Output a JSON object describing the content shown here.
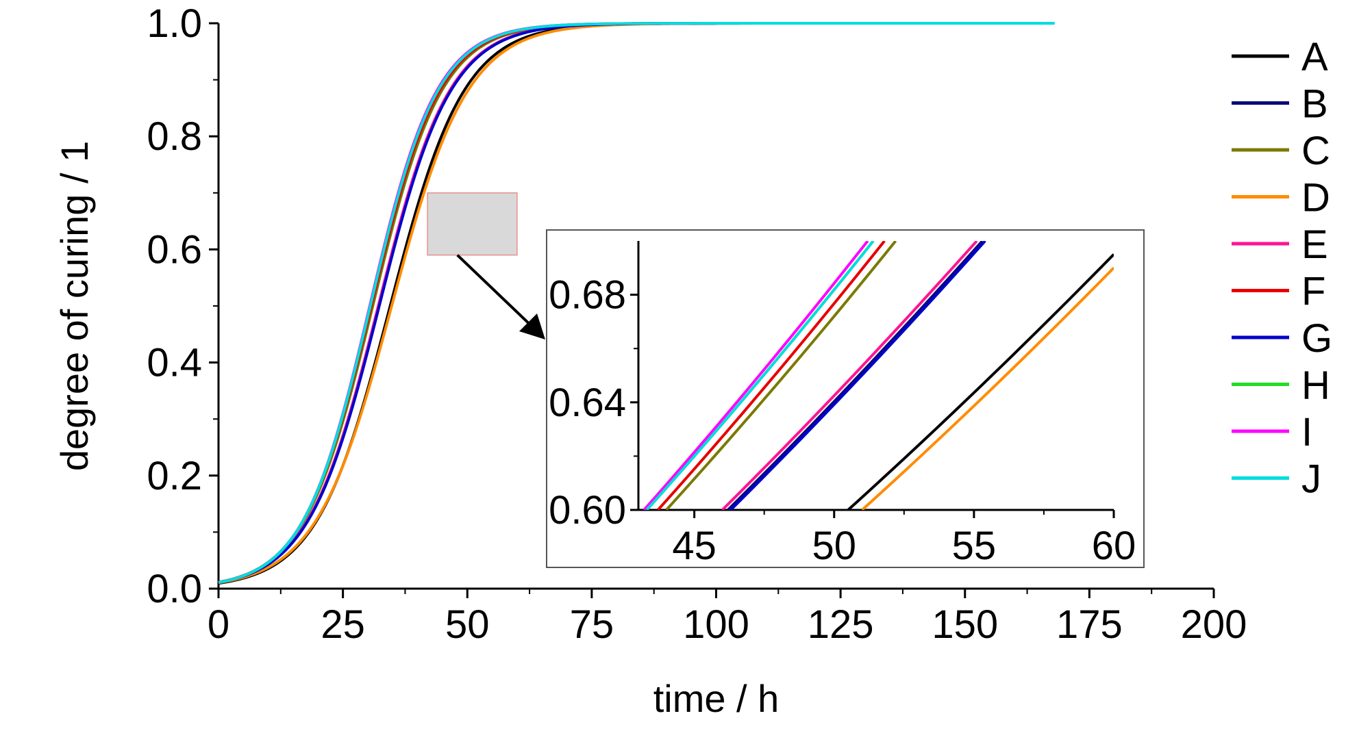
{
  "chart_data": [
    {
      "type": "line",
      "xlabel": "time / h",
      "ylabel": "degree of curing / 1",
      "xlim": [
        0,
        200
      ],
      "ylim": [
        0,
        1.0
      ],
      "x_ticks": [
        "0",
        "25",
        "50",
        "75",
        "100",
        "125",
        "150",
        "175",
        "200"
      ],
      "y_ticks": [
        "0.0",
        "0.2",
        "0.4",
        "0.6",
        "0.8",
        "1.0"
      ],
      "grid": false,
      "legend_position": "right",
      "series": [
        {
          "name": "A",
          "color": "#000000",
          "t_half": 34.5,
          "k": 0.0306,
          "x_end": 168
        },
        {
          "name": "B",
          "color": "#0a0a78",
          "t_half": 32.2,
          "k": 0.0317,
          "x_end": 168
        },
        {
          "name": "C",
          "color": "#7a7a00",
          "t_half": 31.0,
          "k": 0.0328,
          "x_end": 168
        },
        {
          "name": "D",
          "color": "#ff8c00",
          "t_half": 34.8,
          "k": 0.0297,
          "x_end": 168
        },
        {
          "name": "E",
          "color": "#ff1493",
          "t_half": 32.1,
          "k": 0.0317,
          "x_end": 168
        },
        {
          "name": "F",
          "color": "#e60000",
          "t_half": 30.7,
          "k": 0.0331,
          "x_end": 168
        },
        {
          "name": "G",
          "color": "#0000cc",
          "t_half": 32.3,
          "k": 0.0316,
          "x_end": 168
        },
        {
          "name": "H",
          "color": "#22dd22",
          "t_half": 30.5,
          "k": 0.0336,
          "x_end": 168
        },
        {
          "name": "I",
          "color": "#ff00ff",
          "t_half": 30.4,
          "k": 0.0337,
          "x_end": 168
        },
        {
          "name": "J",
          "color": "#00dddd",
          "t_half": 30.5,
          "k": 0.0335,
          "x_end": 168
        }
      ],
      "annotations": {
        "zoom_box": {
          "x": [
            42,
            60
          ],
          "y": [
            0.59,
            0.7
          ]
        }
      }
    },
    {
      "type": "line",
      "role": "inset",
      "xlim": [
        43,
        60
      ],
      "ylim": [
        0.6,
        0.7
      ],
      "x_ticks": [
        "45",
        "50",
        "55",
        "60"
      ],
      "y_ticks": [
        "0.60",
        "0.64",
        "0.68"
      ],
      "series": [
        {
          "name": "A",
          "color": "#000000",
          "points": [
            [
              50.5,
              0.6
            ],
            [
              60,
              0.695
            ]
          ]
        },
        {
          "name": "B",
          "color": "#0a0a78",
          "points": [
            [
              46.2,
              0.6
            ],
            [
              55.3,
              0.7
            ]
          ]
        },
        {
          "name": "C",
          "color": "#7a7a00",
          "points": [
            [
              44.0,
              0.6
            ],
            [
              52.2,
              0.7
            ]
          ]
        },
        {
          "name": "D",
          "color": "#ff8c00",
          "points": [
            [
              51.0,
              0.6
            ],
            [
              60,
              0.69
            ]
          ]
        },
        {
          "name": "E",
          "color": "#ff1493",
          "points": [
            [
              46.0,
              0.6
            ],
            [
              55.1,
              0.7
            ]
          ]
        },
        {
          "name": "F",
          "color": "#e60000",
          "points": [
            [
              43.7,
              0.6
            ],
            [
              51.8,
              0.7
            ]
          ]
        },
        {
          "name": "G",
          "color": "#0000cc",
          "points": [
            [
              46.3,
              0.6
            ],
            [
              55.4,
              0.7
            ]
          ]
        },
        {
          "name": "H",
          "color": "#22dd22",
          "points": [
            [
              43.3,
              0.6
            ],
            [
              51.4,
              0.7
            ]
          ]
        },
        {
          "name": "I",
          "color": "#ff00ff",
          "points": [
            [
              43.2,
              0.6
            ],
            [
              51.2,
              0.7
            ]
          ]
        },
        {
          "name": "J",
          "color": "#00dddd",
          "points": [
            [
              43.3,
              0.6
            ],
            [
              51.4,
              0.7
            ]
          ]
        }
      ]
    }
  ]
}
